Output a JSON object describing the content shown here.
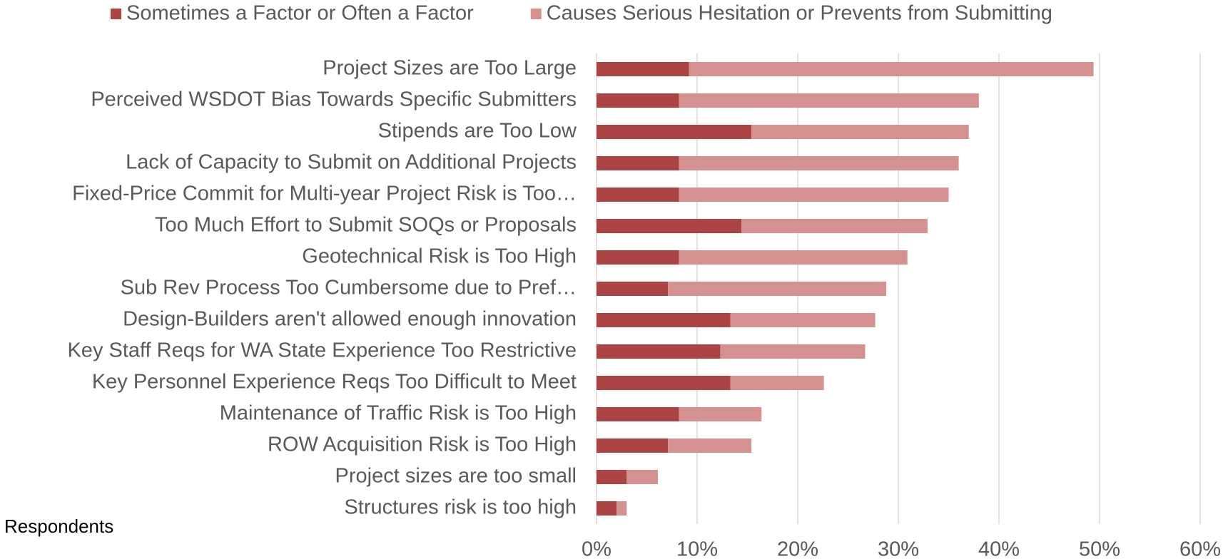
{
  "chart_data": {
    "type": "stacked_bar_horizontal",
    "annotation": "Respondents",
    "categories": [
      "Project Sizes are Too Large",
      "Perceived WSDOT Bias Towards Specific Submitters",
      "Stipends are Too Low",
      "Lack of Capacity to Submit on Additional Projects",
      "Fixed-Price Commit for Multi-year Project Risk is Too…",
      "Too Much Effort to Submit SOQs or Proposals",
      "Geotechnical Risk is Too High",
      "Sub Rev Process Too Cumbersome due to Pref…",
      "Design-Builders aren't allowed enough innovation",
      "Key Staff Reqs for WA State Experience Too Restrictive",
      "Key Personnel Experience Reqs Too Difficult to Meet",
      "Maintenance of Traffic Risk is Too High",
      "ROW Acquisition Risk is Too High",
      "Project sizes are too small",
      "Structures risk is too high"
    ],
    "series": [
      {
        "name": "Sometimes a Factor or Often a Factor",
        "color": "#ad4444",
        "values": [
          9.2,
          8.2,
          15.4,
          8.2,
          8.2,
          14.4,
          8.2,
          7.1,
          13.3,
          12.3,
          13.3,
          8.2,
          7.1,
          3.0,
          2.0
        ]
      },
      {
        "name": "Causes Serious Hesitation or Prevents from Submitting",
        "color": "#d49190",
        "values": [
          40.2,
          29.8,
          21.6,
          27.8,
          26.8,
          18.5,
          22.7,
          21.7,
          14.4,
          14.4,
          9.3,
          8.2,
          8.3,
          3.1,
          1.0
        ]
      }
    ],
    "xlim": [
      0,
      60
    ],
    "xticks": [
      {
        "value": 0,
        "label": "0%"
      },
      {
        "value": 10,
        "label": "10%"
      },
      {
        "value": 20,
        "label": "20%"
      },
      {
        "value": 30,
        "label": "30%"
      },
      {
        "value": 40,
        "label": "40%"
      },
      {
        "value": 50,
        "label": "50%"
      },
      {
        "value": 60,
        "label": "60%"
      }
    ],
    "grid": true,
    "legend": "top"
  }
}
